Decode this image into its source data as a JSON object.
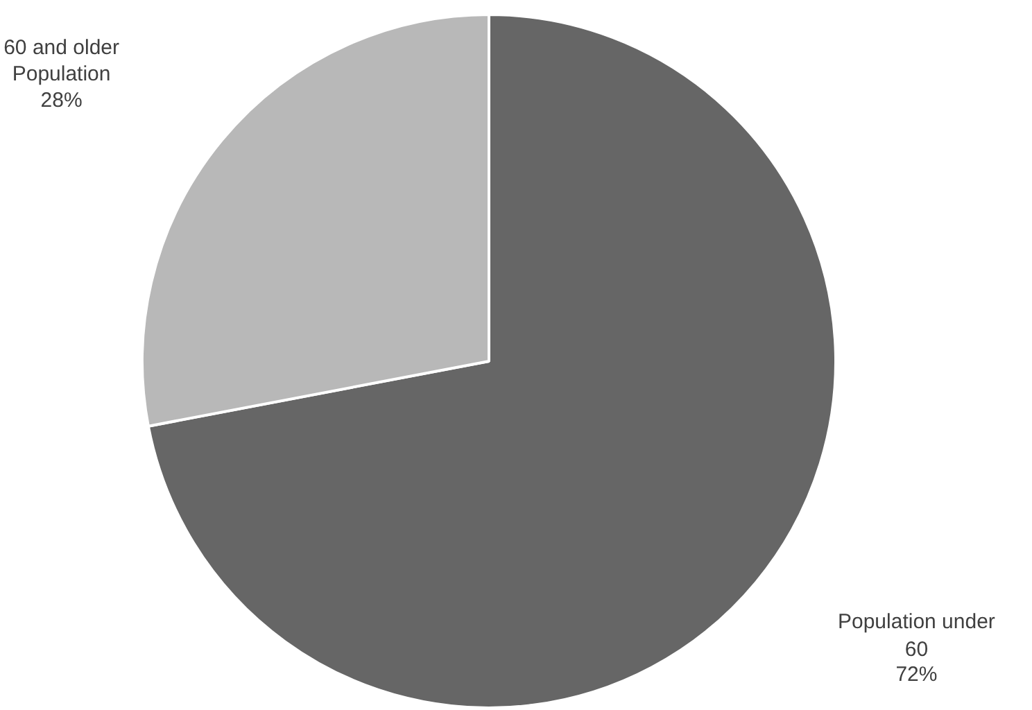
{
  "chart_data": {
    "type": "pie",
    "categories": [
      "Population under 60",
      "60 and older Population"
    ],
    "values": [
      72,
      28
    ],
    "colors": [
      "#666666",
      "#b8b8b8"
    ],
    "value_labels": [
      "72%",
      "28%"
    ]
  }
}
